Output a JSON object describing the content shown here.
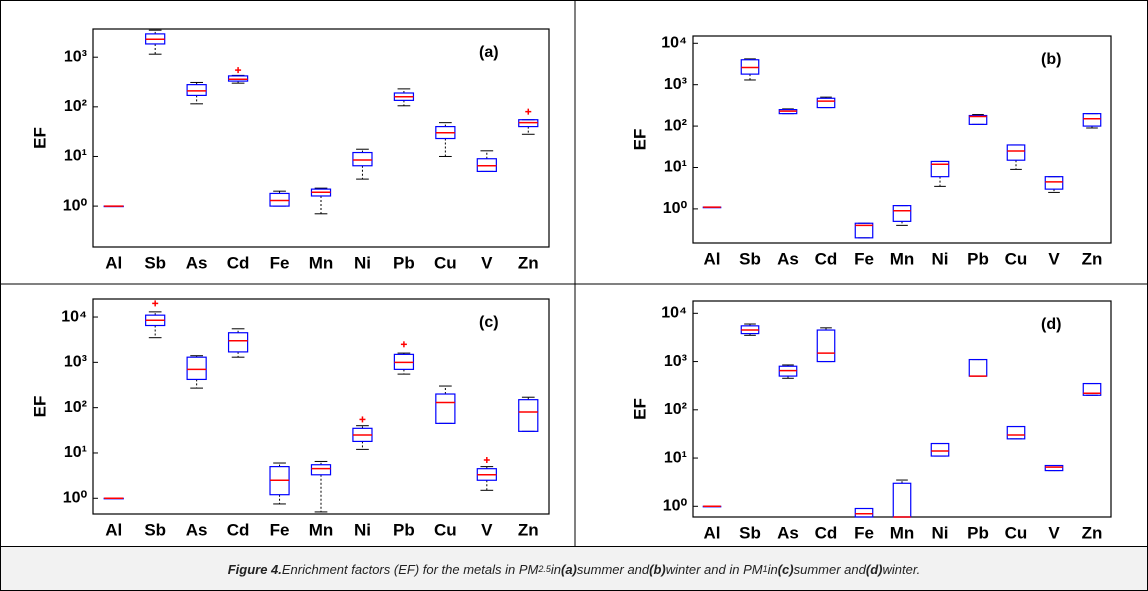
{
  "chart_data": [
    {
      "type": "box",
      "label": "(a)",
      "ylabel": "EF",
      "log": true,
      "ylim": [
        0.15,
        3700
      ],
      "yticks": [
        {
          "value": 1,
          "label": "10⁰"
        },
        {
          "value": 10,
          "label": "10¹"
        },
        {
          "value": 100,
          "label": "10²"
        },
        {
          "value": 1000,
          "label": "10³"
        }
      ],
      "box_color": "#0000ff",
      "median_color": "#ff0000",
      "whisker_color": "#000000",
      "categories": [
        "Al",
        "Sb",
        "As",
        "Cd",
        "Fe",
        "Mn",
        "Ni",
        "Pb",
        "Cu",
        "V",
        "Zn"
      ],
      "boxes": [
        {
          "min": 1,
          "q1": 1,
          "median": 1,
          "q3": 1,
          "max": 1
        },
        {
          "min": 1150,
          "q1": 1850,
          "median": 2300,
          "q3": 2950,
          "max": 3500
        },
        {
          "min": 115,
          "q1": 170,
          "median": 210,
          "q3": 280,
          "max": 310
        },
        {
          "min": 300,
          "q1": 330,
          "median": 360,
          "q3": 420,
          "max": 430,
          "outliers": [
            550
          ]
        },
        {
          "min": 1.0,
          "q1": 1.0,
          "median": 1.3,
          "q3": 1.8,
          "max": 2.0
        },
        {
          "min": 0.7,
          "q1": 1.6,
          "median": 1.9,
          "q3": 2.2,
          "max": 2.3
        },
        {
          "min": 3.5,
          "q1": 6.5,
          "median": 8.5,
          "q3": 12,
          "max": 14
        },
        {
          "min": 105,
          "q1": 135,
          "median": 160,
          "q3": 190,
          "max": 230
        },
        {
          "min": 10,
          "q1": 23,
          "median": 30,
          "q3": 40,
          "max": 48
        },
        {
          "min": 5,
          "q1": 5,
          "median": 6.5,
          "q3": 9,
          "max": 13
        },
        {
          "min": 28,
          "q1": 40,
          "median": 48,
          "q3": 55,
          "max": 55,
          "outliers": [
            80
          ]
        }
      ]
    },
    {
      "type": "box",
      "label": "(b)",
      "ylabel": "EF",
      "log": true,
      "ylim": [
        0.15,
        15000
      ],
      "yticks": [
        {
          "value": 1,
          "label": "10⁰"
        },
        {
          "value": 10,
          "label": "10¹"
        },
        {
          "value": 100,
          "label": "10²"
        },
        {
          "value": 1000,
          "label": "10³"
        },
        {
          "value": 10000,
          "label": "10⁴"
        }
      ],
      "box_color": "#0000ff",
      "median_color": "#ff0000",
      "whisker_color": "#000000",
      "categories": [
        "Al",
        "Sb",
        "As",
        "Cd",
        "Fe",
        "Mn",
        "Ni",
        "Pb",
        "Cu",
        "V",
        "Zn"
      ],
      "boxes": [
        {
          "min": 1.1,
          "q1": 1.1,
          "median": 1.1,
          "q3": 1.1,
          "max": 1.1
        },
        {
          "min": 1300,
          "q1": 1800,
          "median": 2600,
          "q3": 4000,
          "max": 4200
        },
        {
          "min": 200,
          "q1": 200,
          "median": 230,
          "q3": 250,
          "max": 260
        },
        {
          "min": 280,
          "q1": 280,
          "median": 400,
          "q3": 470,
          "max": 500
        },
        {
          "min": 0.2,
          "q1": 0.2,
          "median": 0.4,
          "q3": 0.45,
          "max": 0.45
        },
        {
          "min": 0.4,
          "q1": 0.5,
          "median": 0.9,
          "q3": 1.2,
          "max": 1.2
        },
        {
          "min": 3.5,
          "q1": 6,
          "median": 12,
          "q3": 14,
          "max": 14
        },
        {
          "min": 110,
          "q1": 110,
          "median": 170,
          "q3": 180,
          "max": 190
        },
        {
          "min": 9,
          "q1": 15,
          "median": 25,
          "q3": 35,
          "max": 35
        },
        {
          "min": 2.5,
          "q1": 3,
          "median": 4.5,
          "q3": 6,
          "max": 6
        },
        {
          "min": 90,
          "q1": 100,
          "median": 150,
          "q3": 200,
          "max": 200
        }
      ]
    },
    {
      "type": "box",
      "label": "(c)",
      "ylabel": "EF",
      "log": true,
      "ylim": [
        0.45,
        25000
      ],
      "yticks": [
        {
          "value": 1,
          "label": "10⁰"
        },
        {
          "value": 10,
          "label": "10¹"
        },
        {
          "value": 100,
          "label": "10²"
        },
        {
          "value": 1000,
          "label": "10³"
        },
        {
          "value": 10000,
          "label": "10⁴"
        }
      ],
      "box_color": "#0000ff",
      "median_color": "#ff0000",
      "whisker_color": "#000000",
      "categories": [
        "Al",
        "Sb",
        "As",
        "Cd",
        "Fe",
        "Mn",
        "Ni",
        "Pb",
        "Cu",
        "V",
        "Zn"
      ],
      "boxes": [
        {
          "min": 1,
          "q1": 1,
          "median": 1,
          "q3": 1,
          "max": 1
        },
        {
          "min": 3500,
          "q1": 6500,
          "median": 8500,
          "q3": 11000,
          "max": 13000,
          "outliers": [
            20000
          ]
        },
        {
          "min": 270,
          "q1": 420,
          "median": 700,
          "q3": 1300,
          "max": 1400
        },
        {
          "min": 1300,
          "q1": 1700,
          "median": 3000,
          "q3": 4500,
          "max": 5500
        },
        {
          "min": 0.75,
          "q1": 1.2,
          "median": 2.5,
          "q3": 5,
          "max": 6
        },
        {
          "min": 0.5,
          "q1": 3.3,
          "median": 4.5,
          "q3": 5.5,
          "max": 6.5
        },
        {
          "min": 12,
          "q1": 18,
          "median": 25,
          "q3": 35,
          "max": 40,
          "outliers": [
            55
          ]
        },
        {
          "min": 550,
          "q1": 700,
          "median": 1000,
          "q3": 1500,
          "max": 1600,
          "outliers": [
            2500
          ]
        },
        {
          "min": 45,
          "q1": 45,
          "median": 130,
          "q3": 200,
          "max": 300
        },
        {
          "min": 1.5,
          "q1": 2.5,
          "median": 3.3,
          "q3": 4.5,
          "max": 5,
          "outliers": [
            7
          ]
        },
        {
          "min": 30,
          "q1": 30,
          "median": 80,
          "q3": 150,
          "max": 170
        }
      ]
    },
    {
      "type": "box",
      "label": "(d)",
      "ylabel": "EF",
      "log": true,
      "ylim": [
        0.6,
        18000
      ],
      "yticks": [
        {
          "value": 1,
          "label": "10⁰"
        },
        {
          "value": 10,
          "label": "10¹"
        },
        {
          "value": 100,
          "label": "10²"
        },
        {
          "value": 1000,
          "label": "10³"
        },
        {
          "value": 10000,
          "label": "10⁴"
        }
      ],
      "box_color": "#0000ff",
      "median_color": "#ff0000",
      "whisker_color": "#000000",
      "categories": [
        "Al",
        "Sb",
        "As",
        "Cd",
        "Fe",
        "Mn",
        "Ni",
        "Pb",
        "Cu",
        "V",
        "Zn"
      ],
      "boxes": [
        {
          "min": 1,
          "q1": 1,
          "median": 1,
          "q3": 1,
          "max": 1
        },
        {
          "min": 3500,
          "q1": 3800,
          "median": 4500,
          "q3": 5500,
          "max": 6000
        },
        {
          "min": 450,
          "q1": 500,
          "median": 650,
          "q3": 800,
          "max": 850
        },
        {
          "min": 1000,
          "q1": 1000,
          "median": 1500,
          "q3": 4500,
          "max": 5000
        },
        {
          "min": 0.6,
          "q1": 0.6,
          "median": 0.7,
          "q3": 0.9,
          "max": 0.9
        },
        {
          "min": 0.6,
          "q1": 0.6,
          "median": 0.6,
          "q3": 3,
          "max": 3.5
        },
        {
          "min": 11,
          "q1": 11,
          "median": 14,
          "q3": 20,
          "max": 20
        },
        {
          "min": 500,
          "q1": 500,
          "median": 500,
          "q3": 1100,
          "max": 1100
        },
        {
          "min": 25,
          "q1": 25,
          "median": 30,
          "q3": 45,
          "max": 45
        },
        {
          "min": 5.5,
          "q1": 5.5,
          "median": 6.5,
          "q3": 7,
          "max": 7
        },
        {
          "min": 200,
          "q1": 200,
          "median": 220,
          "q3": 350,
          "max": 350
        }
      ]
    }
  ],
  "caption": [
    {
      "text": "Figure 4.",
      "bold": true
    },
    {
      "text": " Enrichment factors (EF) for the metals in PM"
    },
    {
      "text": "2.5",
      "sub": true
    },
    {
      "text": " in "
    },
    {
      "text": "(a)",
      "bold": true
    },
    {
      "text": " summer and "
    },
    {
      "text": "(b)",
      "bold": true
    },
    {
      "text": " winter and in PM"
    },
    {
      "text": "1",
      "sub": true
    },
    {
      "text": " in "
    },
    {
      "text": "(c)",
      "bold": true
    },
    {
      "text": " summer and "
    },
    {
      "text": "(d)",
      "bold": true
    },
    {
      "text": " winter."
    }
  ]
}
